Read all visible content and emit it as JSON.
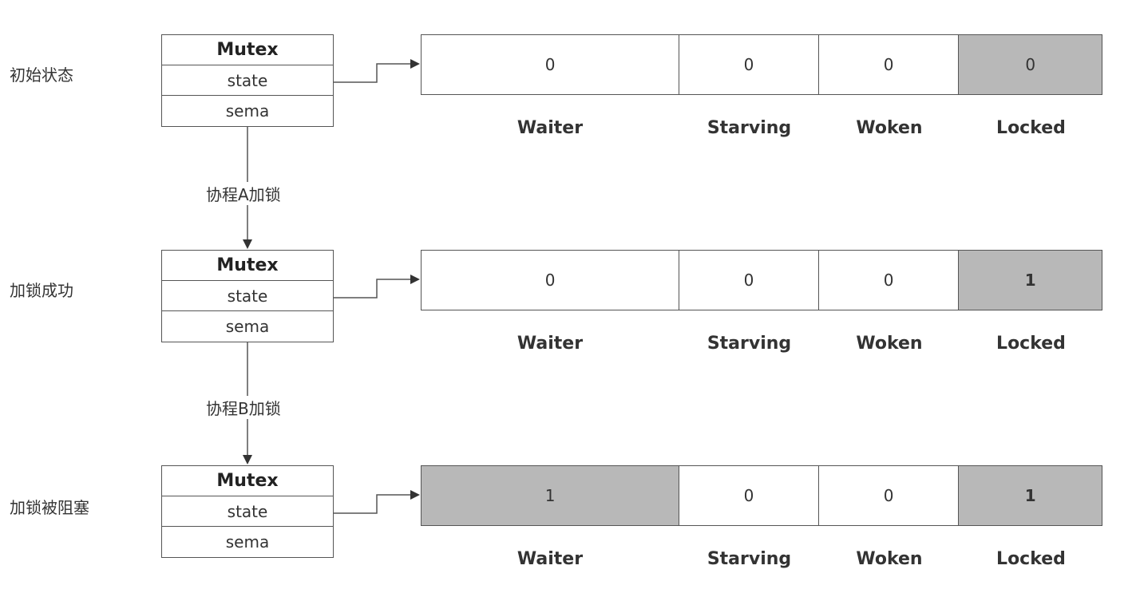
{
  "fields": [
    "Waiter",
    "Starving",
    "Woken",
    "Locked"
  ],
  "mutex": {
    "title": "Mutex",
    "state": "state",
    "sema": "sema"
  },
  "stages": [
    {
      "label": "初始状态",
      "values": [
        "0",
        "0",
        "0",
        "0"
      ],
      "highlight": [
        false,
        false,
        false,
        true
      ],
      "bold": [
        false,
        false,
        false,
        false
      ]
    },
    {
      "label": "加锁成功",
      "values": [
        "0",
        "0",
        "0",
        "1"
      ],
      "highlight": [
        false,
        false,
        false,
        true
      ],
      "bold": [
        false,
        false,
        false,
        true
      ]
    },
    {
      "label": "加锁被阻塞",
      "values": [
        "1",
        "0",
        "0",
        "1"
      ],
      "highlight": [
        true,
        false,
        false,
        true
      ],
      "bold": [
        false,
        false,
        false,
        true
      ]
    }
  ],
  "transitions": [
    "协程A加锁",
    "协程B加锁"
  ]
}
